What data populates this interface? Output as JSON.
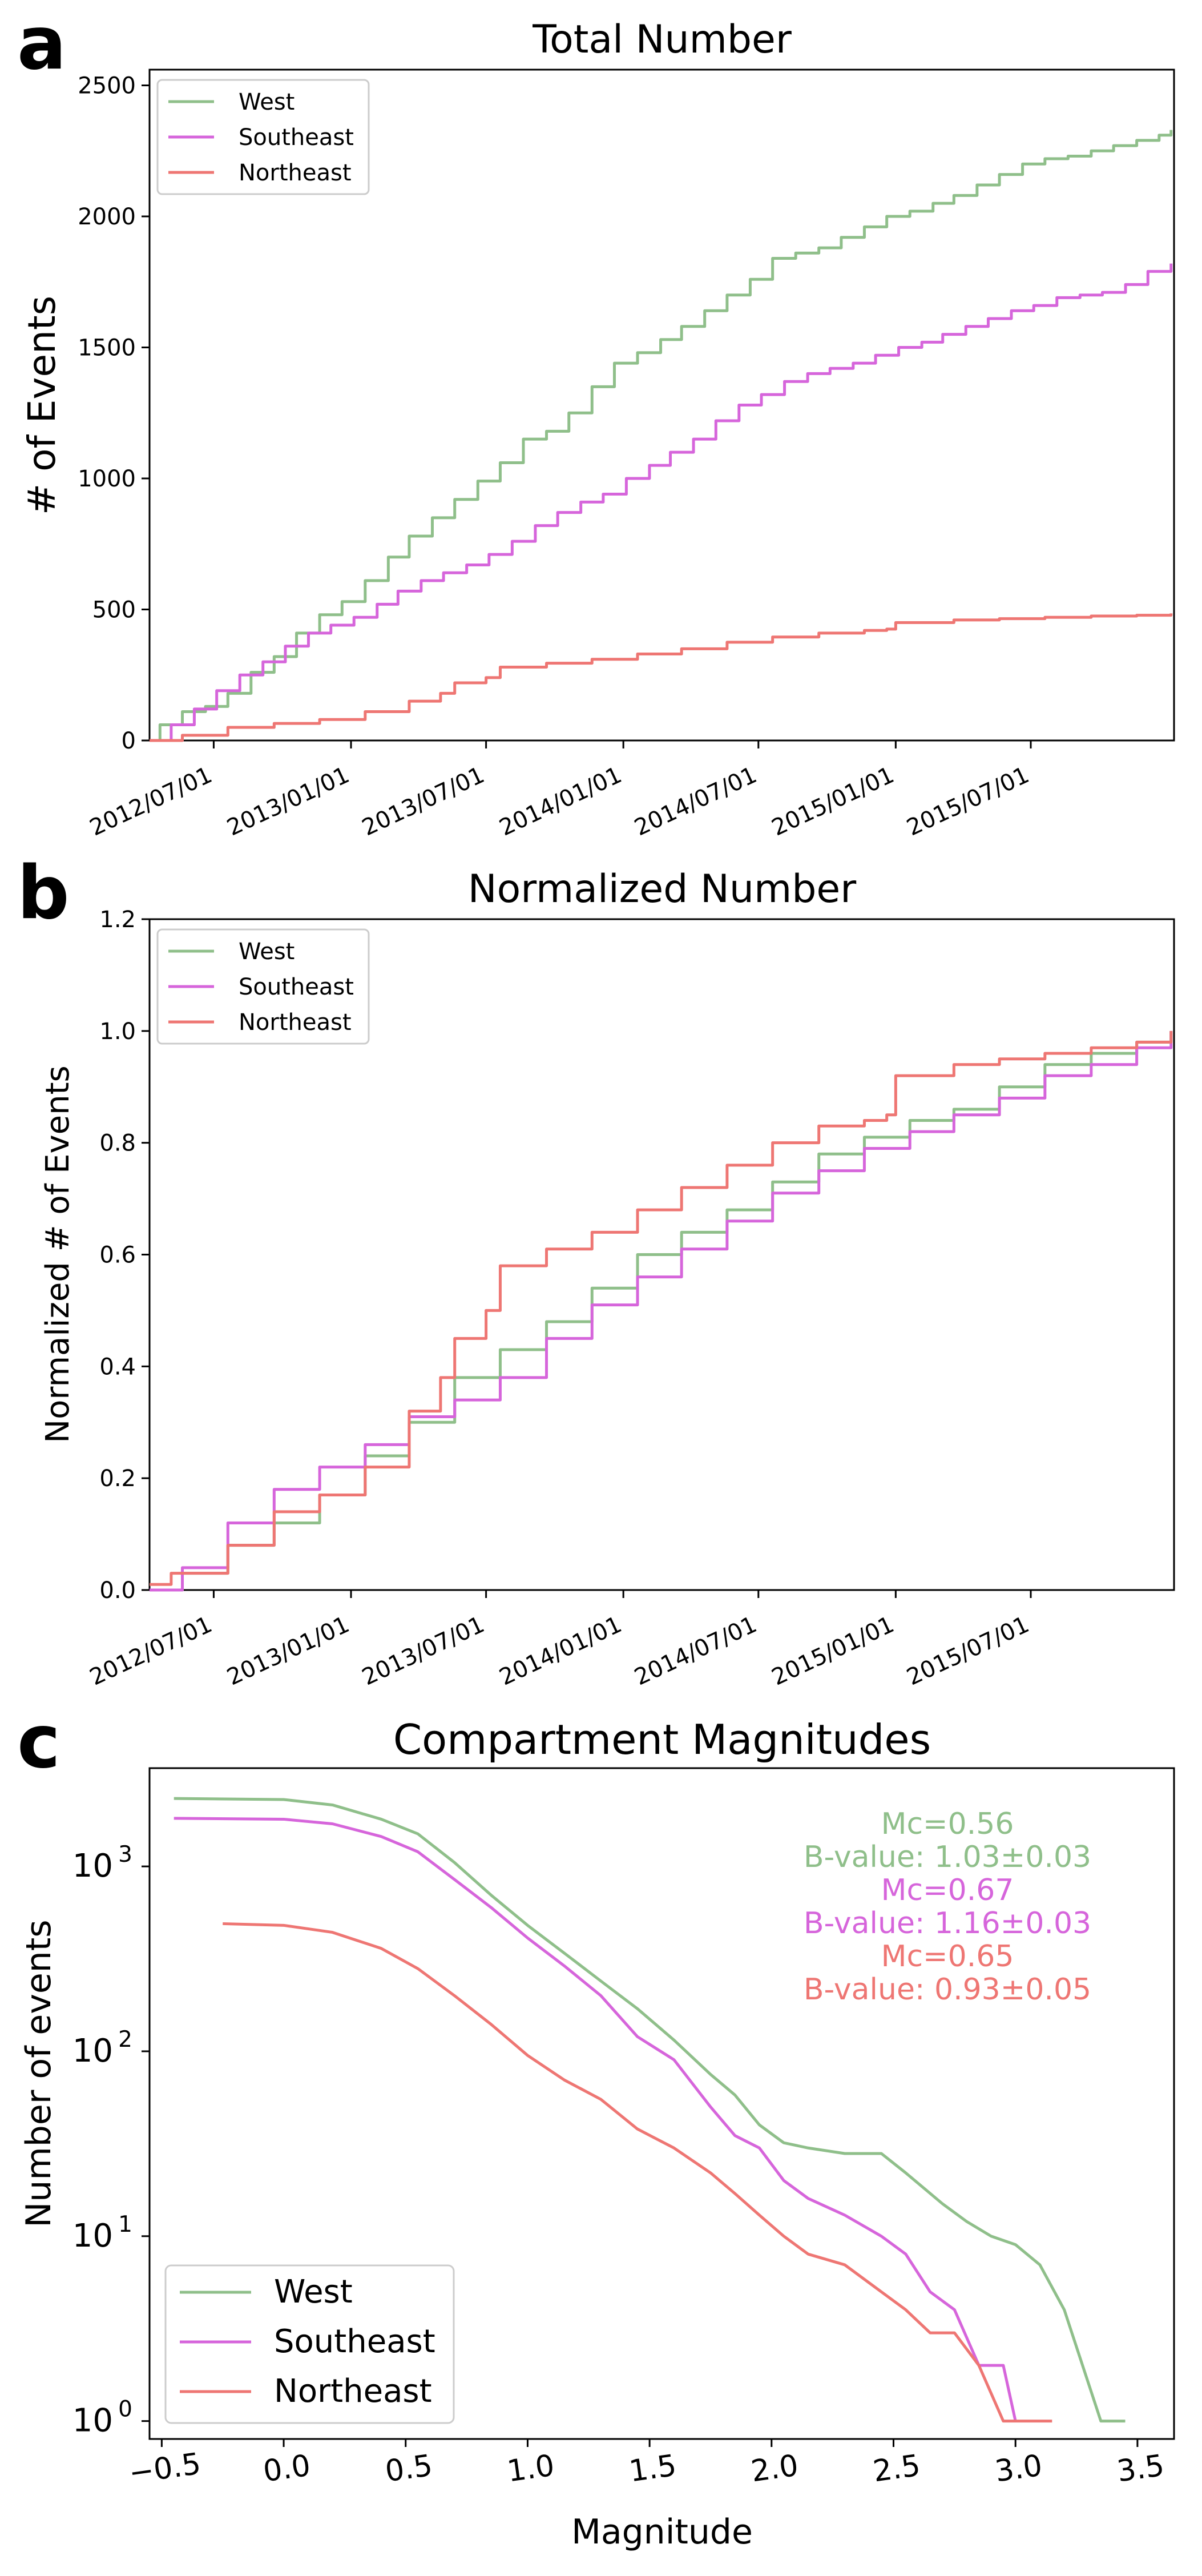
{
  "colors": {
    "West": "#8fbf8a",
    "Southeast": "#d665db",
    "Northeast": "#ee7673",
    "axis": "#000000"
  },
  "chart_data": [
    {
      "panel_letter": "a",
      "type": "line",
      "title": "Total Number",
      "xlabel": "",
      "ylabel": "# of Events",
      "x_ticks": [
        "2012/07/01",
        "2013/01/01",
        "2013/07/01",
        "2014/01/01",
        "2014/07/01",
        "2015/01/01",
        "2015/07/01"
      ],
      "y_ticks": [
        "0",
        "500",
        "1000",
        "1500",
        "2000",
        "2500"
      ],
      "xlim": [
        "2012-04-06",
        "2016-01-09"
      ],
      "ylim": [
        0,
        2560
      ],
      "legend": "top-left",
      "series": [
        {
          "name": "West",
          "x": [
            "2012-04-06",
            "2012-04-20",
            "2012-05-20",
            "2012-06-20",
            "2012-07-20",
            "2012-08-20",
            "2012-09-20",
            "2012-10-20",
            "2012-11-20",
            "2012-12-20",
            "2013-01-20",
            "2013-02-20",
            "2013-03-20",
            "2013-04-20",
            "2013-05-20",
            "2013-06-20",
            "2013-07-20",
            "2013-08-20",
            "2013-09-20",
            "2013-10-20",
            "2013-11-20",
            "2013-12-20",
            "2014-01-20",
            "2014-02-20",
            "2014-03-20",
            "2014-04-20",
            "2014-05-20",
            "2014-06-20",
            "2014-07-20",
            "2014-08-20",
            "2014-09-20",
            "2014-10-20",
            "2014-11-20",
            "2014-12-20",
            "2015-01-20",
            "2015-02-20",
            "2015-03-20",
            "2015-04-20",
            "2015-05-20",
            "2015-06-20",
            "2015-07-20",
            "2015-08-20",
            "2015-09-20",
            "2015-10-20",
            "2015-11-20",
            "2015-12-20",
            "2016-01-05"
          ],
          "y": [
            0,
            60,
            110,
            130,
            180,
            260,
            320,
            410,
            480,
            530,
            610,
            700,
            780,
            850,
            920,
            990,
            1060,
            1150,
            1180,
            1250,
            1350,
            1440,
            1480,
            1530,
            1580,
            1640,
            1700,
            1760,
            1840,
            1860,
            1880,
            1920,
            1960,
            2000,
            2020,
            2050,
            2080,
            2120,
            2160,
            2200,
            2220,
            2230,
            2250,
            2270,
            2290,
            2310,
            2330
          ]
        },
        {
          "name": "Southeast",
          "x": [
            "2012-04-06",
            "2012-05-05",
            "2012-06-05",
            "2012-07-05",
            "2012-08-05",
            "2012-09-05",
            "2012-10-05",
            "2012-11-05",
            "2012-12-05",
            "2013-01-05",
            "2013-02-05",
            "2013-03-05",
            "2013-04-05",
            "2013-05-05",
            "2013-06-05",
            "2013-07-05",
            "2013-08-05",
            "2013-09-05",
            "2013-10-05",
            "2013-11-05",
            "2013-12-05",
            "2014-01-05",
            "2014-02-05",
            "2014-03-05",
            "2014-04-05",
            "2014-05-05",
            "2014-06-05",
            "2014-07-05",
            "2014-08-05",
            "2014-09-05",
            "2014-10-05",
            "2014-11-05",
            "2014-12-05",
            "2015-01-05",
            "2015-02-05",
            "2015-03-05",
            "2015-04-05",
            "2015-05-05",
            "2015-06-05",
            "2015-07-05",
            "2015-08-05",
            "2015-09-05",
            "2015-10-05",
            "2015-11-05",
            "2015-12-05",
            "2016-01-05"
          ],
          "y": [
            0,
            60,
            120,
            190,
            250,
            300,
            360,
            410,
            440,
            470,
            520,
            570,
            610,
            640,
            670,
            710,
            760,
            820,
            870,
            910,
            940,
            1000,
            1050,
            1100,
            1150,
            1220,
            1280,
            1320,
            1370,
            1400,
            1420,
            1440,
            1470,
            1500,
            1520,
            1550,
            1580,
            1610,
            1640,
            1660,
            1690,
            1700,
            1710,
            1740,
            1790,
            1820
          ]
        },
        {
          "name": "Northeast",
          "x": [
            "2012-04-06",
            "2012-05-20",
            "2012-07-20",
            "2012-09-20",
            "2012-11-20",
            "2013-01-20",
            "2013-03-20",
            "2013-05-01",
            "2013-05-20",
            "2013-07-01",
            "2013-07-20",
            "2013-09-20",
            "2013-11-20",
            "2014-01-20",
            "2014-03-20",
            "2014-05-20",
            "2014-07-20",
            "2014-09-20",
            "2014-11-20",
            "2014-12-20",
            "2015-01-01",
            "2015-03-20",
            "2015-05-20",
            "2015-07-20",
            "2015-09-20",
            "2015-11-20",
            "2016-01-05"
          ],
          "y": [
            0,
            20,
            50,
            65,
            80,
            110,
            150,
            180,
            220,
            240,
            280,
            295,
            310,
            330,
            350,
            375,
            395,
            410,
            420,
            425,
            450,
            460,
            465,
            470,
            475,
            478,
            485
          ]
        }
      ]
    },
    {
      "panel_letter": "b",
      "type": "line",
      "title": "Normalized Number",
      "xlabel": "",
      "ylabel": "Normalized # of Events",
      "x_ticks": [
        "2012/07/01",
        "2013/01/01",
        "2013/07/01",
        "2014/01/01",
        "2014/07/01",
        "2015/01/01",
        "2015/07/01"
      ],
      "y_ticks": [
        "0.0",
        "0.2",
        "0.4",
        "0.6",
        "0.8",
        "1.0",
        "1.2"
      ],
      "xlim": [
        "2012-04-06",
        "2016-01-09"
      ],
      "ylim": [
        0,
        1.2
      ],
      "legend": "top-left",
      "series": [
        {
          "name": "West",
          "x": [
            "2012-04-06",
            "2012-05-20",
            "2012-07-20",
            "2012-09-20",
            "2012-11-20",
            "2013-01-20",
            "2013-03-20",
            "2013-05-20",
            "2013-07-20",
            "2013-09-20",
            "2013-11-20",
            "2014-01-20",
            "2014-03-20",
            "2014-05-20",
            "2014-07-20",
            "2014-09-20",
            "2014-11-20",
            "2015-01-20",
            "2015-03-20",
            "2015-05-20",
            "2015-07-20",
            "2015-09-20",
            "2015-11-20",
            "2016-01-05"
          ],
          "y": [
            0,
            0.03,
            0.08,
            0.12,
            0.17,
            0.24,
            0.3,
            0.38,
            0.43,
            0.48,
            0.54,
            0.6,
            0.64,
            0.68,
            0.73,
            0.78,
            0.81,
            0.84,
            0.86,
            0.9,
            0.94,
            0.96,
            0.98,
            1.0
          ]
        },
        {
          "name": "Southeast",
          "x": [
            "2012-04-06",
            "2012-05-20",
            "2012-07-20",
            "2012-09-20",
            "2012-11-20",
            "2013-01-20",
            "2013-03-20",
            "2013-05-20",
            "2013-07-20",
            "2013-09-20",
            "2013-11-20",
            "2014-01-20",
            "2014-03-20",
            "2014-05-20",
            "2014-07-20",
            "2014-09-20",
            "2014-11-20",
            "2015-01-20",
            "2015-03-20",
            "2015-05-20",
            "2015-07-20",
            "2015-09-20",
            "2015-11-20",
            "2016-01-05"
          ],
          "y": [
            0,
            0.04,
            0.12,
            0.18,
            0.22,
            0.26,
            0.31,
            0.34,
            0.38,
            0.45,
            0.51,
            0.56,
            0.61,
            0.66,
            0.71,
            0.75,
            0.79,
            0.82,
            0.85,
            0.88,
            0.92,
            0.94,
            0.97,
            1.0
          ]
        },
        {
          "name": "Northeast",
          "x": [
            "2012-04-06",
            "2012-05-05",
            "2012-07-20",
            "2012-09-20",
            "2012-11-20",
            "2013-01-20",
            "2013-03-20",
            "2013-05-01",
            "2013-05-20",
            "2013-07-01",
            "2013-07-20",
            "2013-09-20",
            "2013-11-20",
            "2014-01-20",
            "2014-03-20",
            "2014-05-20",
            "2014-07-20",
            "2014-09-20",
            "2014-11-20",
            "2014-12-20",
            "2015-01-01",
            "2015-03-20",
            "2015-05-20",
            "2015-07-20",
            "2015-09-20",
            "2015-11-20",
            "2016-01-05"
          ],
          "y": [
            0.01,
            0.03,
            0.08,
            0.14,
            0.17,
            0.22,
            0.32,
            0.38,
            0.45,
            0.5,
            0.58,
            0.61,
            0.64,
            0.68,
            0.72,
            0.76,
            0.8,
            0.83,
            0.84,
            0.85,
            0.92,
            0.94,
            0.95,
            0.96,
            0.97,
            0.98,
            1.0
          ]
        }
      ]
    },
    {
      "panel_letter": "c",
      "type": "line",
      "title": "Compartment Magnitudes",
      "xlabel": "Magnitude",
      "ylabel": "Number of events",
      "x_ticks": [
        "−0.5",
        "0.0",
        "0.5",
        "1.0",
        "1.5",
        "2.0",
        "2.5",
        "3.0",
        "3.5"
      ],
      "y_ticks": [
        {
          "base": "10",
          "exp": "0"
        },
        {
          "base": "10",
          "exp": "1"
        },
        {
          "base": "10",
          "exp": "2"
        },
        {
          "base": "10",
          "exp": "3"
        }
      ],
      "xlim": [
        -0.55,
        3.65
      ],
      "ylim": [
        0.8,
        3400
      ],
      "yscale": "log",
      "legend": "bottom-left",
      "annotations": [
        {
          "text": "Mc=0.56",
          "series": "West"
        },
        {
          "text": "B-value: 1.03±0.03",
          "series": "West"
        },
        {
          "text": "Mc=0.67",
          "series": "Southeast"
        },
        {
          "text": "B-value: 1.16±0.03",
          "series": "Southeast"
        },
        {
          "text": "Mc=0.65",
          "series": "Northeast"
        },
        {
          "text": "B-value: 0.93±0.05",
          "series": "Northeast"
        }
      ],
      "series": [
        {
          "name": "West",
          "x": [
            -0.45,
            0.0,
            0.2,
            0.4,
            0.55,
            0.7,
            0.85,
            1.0,
            1.15,
            1.3,
            1.45,
            1.6,
            1.75,
            1.85,
            1.95,
            2.05,
            2.15,
            2.3,
            2.45,
            2.55,
            2.7,
            2.8,
            2.9,
            3.0,
            3.1,
            3.2,
            3.35,
            3.45
          ],
          "y": [
            2330,
            2300,
            2150,
            1800,
            1500,
            1050,
            700,
            480,
            340,
            240,
            170,
            115,
            75,
            58,
            40,
            32,
            30,
            28,
            28,
            22,
            15,
            12,
            10,
            9,
            7,
            4,
            1,
            1
          ]
        },
        {
          "name": "Southeast",
          "x": [
            -0.45,
            0.0,
            0.2,
            0.4,
            0.55,
            0.7,
            0.85,
            1.0,
            1.15,
            1.3,
            1.45,
            1.6,
            1.75,
            1.85,
            1.95,
            2.05,
            2.15,
            2.3,
            2.45,
            2.55,
            2.65,
            2.75,
            2.85,
            2.95,
            3.0
          ],
          "y": [
            1820,
            1800,
            1700,
            1450,
            1200,
            850,
            600,
            410,
            290,
            200,
            120,
            90,
            50,
            35,
            30,
            20,
            16,
            13,
            10,
            8,
            5,
            4,
            2,
            2,
            1
          ]
        },
        {
          "name": "Northeast",
          "x": [
            -0.25,
            0.0,
            0.2,
            0.4,
            0.55,
            0.7,
            0.85,
            1.0,
            1.15,
            1.3,
            1.45,
            1.6,
            1.75,
            1.85,
            1.95,
            2.05,
            2.15,
            2.3,
            2.45,
            2.55,
            2.65,
            2.75,
            2.85,
            2.95,
            3.05,
            3.15
          ],
          "y": [
            490,
            480,
            440,
            360,
            280,
            200,
            140,
            95,
            70,
            55,
            38,
            30,
            22,
            17,
            13,
            10,
            8,
            7,
            5,
            4,
            3,
            3,
            2,
            1,
            1,
            1
          ]
        }
      ]
    }
  ]
}
